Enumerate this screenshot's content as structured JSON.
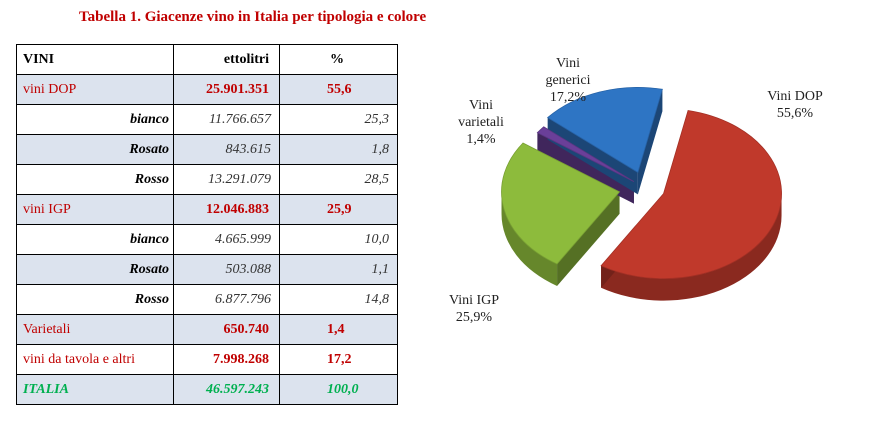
{
  "title": "Tabella 1. Giacenze vino in Italia per tipologia e colore",
  "table": {
    "headers": [
      "VINI",
      "ettolitri",
      "%"
    ],
    "rows": [
      {
        "label": "vini DOP",
        "ettolitri": "25.901.351",
        "pct": "55,6",
        "kind": "cat"
      },
      {
        "label": "bianco",
        "ettolitri": "11.766.657",
        "pct": "25,3",
        "kind": "sub"
      },
      {
        "label": "Rosato",
        "ettolitri": "843.615",
        "pct": "1,8",
        "kind": "sub"
      },
      {
        "label": "Rosso",
        "ettolitri": "13.291.079",
        "pct": "28,5",
        "kind": "sub"
      },
      {
        "label": "vini IGP",
        "ettolitri": "12.046.883",
        "pct": "25,9",
        "kind": "cat"
      },
      {
        "label": "bianco",
        "ettolitri": "4.665.999",
        "pct": "10,0",
        "kind": "sub"
      },
      {
        "label": "Rosato",
        "ettolitri": "503.088",
        "pct": "1,1",
        "kind": "sub"
      },
      {
        "label": "Rosso",
        "ettolitri": "6.877.796",
        "pct": "14,8",
        "kind": "sub"
      },
      {
        "label": "Varietali",
        "ettolitri": "650.740",
        "pct": "1,4",
        "kind": "cat"
      },
      {
        "label": "vini da tavola e altri",
        "ettolitri": "7.998.268",
        "pct": "17,2",
        "kind": "cat"
      },
      {
        "label": "ITALIA",
        "ettolitri": "46.597.243",
        "pct": "100,0",
        "kind": "tot"
      }
    ]
  },
  "chart_data": {
    "type": "pie",
    "slices": [
      {
        "name": "Vini DOP",
        "value": 55.6,
        "label": "55,6%",
        "color": "#c0392b"
      },
      {
        "name": "Vini IGP",
        "value": 25.9,
        "label": "25,9%",
        "color": "#8dbb3c"
      },
      {
        "name": "Vini varietali",
        "value": 1.4,
        "label": "1,4%",
        "color": "#6a3f99"
      },
      {
        "name": "Vini generici",
        "value": 17.2,
        "label": "17,2%",
        "color": "#2e75c4"
      }
    ],
    "labels": {
      "dop": {
        "name": "Vini DOP",
        "pct": "55,6%"
      },
      "igp": {
        "name": "Vini IGP",
        "pct": "25,9%"
      },
      "varietali": {
        "name_line1": "Vini",
        "name_line2": "varietali",
        "pct": "1,4%"
      },
      "generici": {
        "name_line1": "Vini",
        "name_line2": "generici",
        "pct": "17,2%"
      }
    }
  }
}
